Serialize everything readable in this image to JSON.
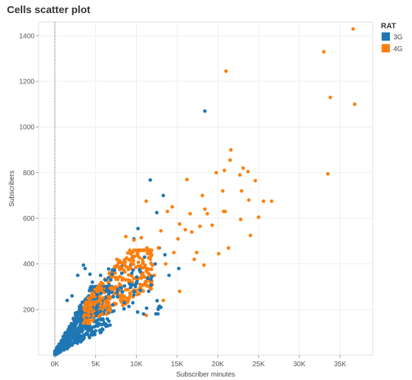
{
  "colors": {
    "3G": "#1f77b4",
    "4G": "#ff7f0e",
    "grid": "#eeeeee",
    "zero_line": "#333333"
  },
  "chart_data": {
    "type": "scatter",
    "title": "Cells scatter plot",
    "xlabel": "Subscriber minutes",
    "ylabel": "Subscribers",
    "xlim": [
      -2000,
      39000
    ],
    "ylim": [
      0,
      1460
    ],
    "x_ticks": [
      0,
      5000,
      10000,
      15000,
      20000,
      25000,
      30000,
      35000
    ],
    "x_tick_labels": [
      "0K",
      "5K",
      "10K",
      "15K",
      "20K",
      "25K",
      "30K",
      "35K"
    ],
    "y_ticks": [
      200,
      400,
      600,
      800,
      1000,
      1200,
      1400
    ],
    "y_tick_labels": [
      "200",
      "400",
      "600",
      "800",
      "1000",
      "1200",
      "1400"
    ],
    "grid": true,
    "legend": {
      "title": "RAT",
      "placement": "top-right"
    },
    "series": [
      {
        "name": "3G",
        "color": "#1f77b4",
        "points": [
          [
            18400,
            1070
          ],
          [
            11700,
            768
          ],
          [
            13300,
            700
          ],
          [
            12500,
            625
          ],
          [
            10200,
            555
          ],
          [
            9700,
            510
          ],
          [
            8200,
            390
          ],
          [
            9300,
            395
          ],
          [
            12300,
            400
          ],
          [
            10500,
            380
          ],
          [
            15200,
            380
          ],
          [
            3500,
            395
          ],
          [
            5600,
            350
          ],
          [
            6300,
            330
          ],
          [
            6600,
            340
          ],
          [
            8000,
            300
          ],
          [
            4300,
            355
          ],
          [
            2800,
            350
          ],
          [
            3700,
            380
          ],
          [
            7100,
            275
          ],
          [
            5200,
            245
          ],
          [
            2100,
            260
          ],
          [
            1500,
            240
          ],
          [
            12800,
            470
          ],
          [
            13500,
            440
          ],
          [
            11000,
            430
          ],
          [
            14000,
            350
          ],
          [
            4600,
            320
          ],
          [
            6000,
            290
          ],
          [
            9000,
            330
          ]
        ],
        "cluster": {
          "x_range": [
            0,
            7000
          ],
          "y_range": [
            0,
            300
          ],
          "count": 700
        }
      },
      {
        "name": "4G",
        "color": "#ff7f0e",
        "points": [
          [
            36600,
            1430
          ],
          [
            33000,
            1330
          ],
          [
            33800,
            1130
          ],
          [
            36800,
            1100
          ],
          [
            21000,
            1245
          ],
          [
            33500,
            795
          ],
          [
            21600,
            900
          ],
          [
            19800,
            800
          ],
          [
            20800,
            810
          ],
          [
            21500,
            855
          ],
          [
            23700,
            805
          ],
          [
            23100,
            820
          ],
          [
            24600,
            765
          ],
          [
            22700,
            790
          ],
          [
            20600,
            720
          ],
          [
            22900,
            720
          ],
          [
            23800,
            680
          ],
          [
            26600,
            675
          ],
          [
            25600,
            675
          ],
          [
            20900,
            630
          ],
          [
            20700,
            630
          ],
          [
            22800,
            595
          ],
          [
            25000,
            605
          ],
          [
            24000,
            525
          ],
          [
            21300,
            470
          ],
          [
            20100,
            445
          ],
          [
            17400,
            450
          ],
          [
            18300,
            395
          ],
          [
            16600,
            620
          ],
          [
            16200,
            770
          ],
          [
            18100,
            700
          ],
          [
            18400,
            640
          ],
          [
            17800,
            565
          ],
          [
            15300,
            575
          ],
          [
            16000,
            550
          ],
          [
            14400,
            650
          ],
          [
            13800,
            630
          ],
          [
            11200,
            675
          ],
          [
            13000,
            545
          ],
          [
            15100,
            510
          ],
          [
            12700,
            470
          ],
          [
            11300,
            470
          ],
          [
            10600,
            515
          ],
          [
            9700,
            505
          ],
          [
            8700,
            520
          ],
          [
            7600,
            420
          ],
          [
            9300,
            445
          ],
          [
            10200,
            390
          ],
          [
            12200,
            350
          ],
          [
            13600,
            400
          ],
          [
            11600,
            300
          ],
          [
            15300,
            280
          ],
          [
            11200,
            175
          ],
          [
            14600,
            450
          ],
          [
            17100,
            420
          ],
          [
            19300,
            570
          ],
          [
            18700,
            620
          ],
          [
            16800,
            540
          ],
          [
            9000,
            240
          ],
          [
            13300,
            240
          ]
        ],
        "cluster": {
          "x_range": [
            3500,
            12000
          ],
          "y_range": [
            140,
            460
          ],
          "count": 320
        }
      }
    ]
  }
}
